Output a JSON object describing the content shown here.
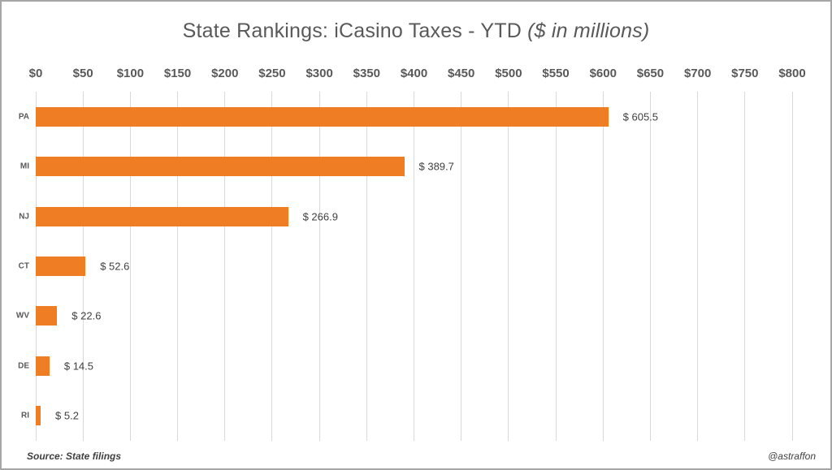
{
  "chart_data": {
    "type": "bar",
    "orientation": "horizontal",
    "title": "State Rankings: iCasino Taxes - YTD",
    "title_note": "($ in millions)",
    "categories": [
      "PA",
      "MI",
      "NJ",
      "CT",
      "WV",
      "DE",
      "RI"
    ],
    "values": [
      605.5,
      389.7,
      266.9,
      52.6,
      22.6,
      14.5,
      5.2
    ],
    "value_labels": [
      "$ 605.5",
      "$ 389.7",
      "$ 266.9",
      "$ 52.6",
      "$ 22.6",
      "$ 14.5",
      "$ 5.2"
    ],
    "xlim": [
      0,
      800
    ],
    "x_tick_step": 50,
    "x_ticks": [
      "$0",
      "$50",
      "$100",
      "$150",
      "$200",
      "$250",
      "$300",
      "$350",
      "$400",
      "$450",
      "$500",
      "$550",
      "$600",
      "$650",
      "$700",
      "$750",
      "$800"
    ],
    "grid": true,
    "legend": "none",
    "bar_color": "#EE7D24"
  },
  "footer": {
    "source": "Source: State filings",
    "handle": "@astraffon"
  },
  "colors": {
    "bar": "#EE7D24",
    "gridline": "#D9D9D9",
    "axis_text": "#595959",
    "value_text": "#404040",
    "frame_border": "#A6A6A6"
  }
}
